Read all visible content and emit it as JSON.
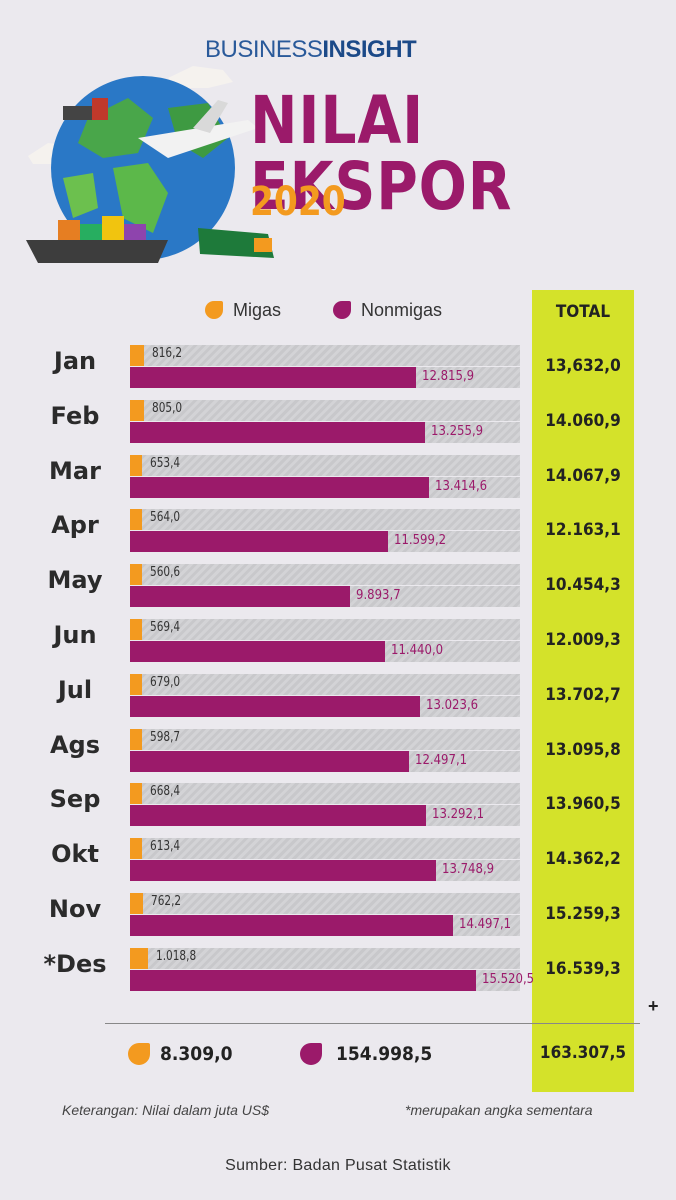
{
  "header": {
    "brand_plain": "BUSINESS",
    "brand_bold": "INSIGHT",
    "title": "NILAI EKSPOR",
    "year": "2020"
  },
  "colors": {
    "migas": "#f39a1f",
    "nonmigas": "#9b1a6a",
    "total_column": "#d4e22a",
    "background": "#ebe9ee"
  },
  "chart_data": {
    "type": "bar",
    "orientation": "horizontal",
    "categories": [
      "Jan",
      "Feb",
      "Mar",
      "Apr",
      "May",
      "Jun",
      "Jul",
      "Ags",
      "Sep",
      "Okt",
      "Nov",
      "*Des"
    ],
    "series": [
      {
        "name": "Migas",
        "values": [
          816.2,
          805.0,
          653.4,
          564.0,
          560.6,
          569.4,
          679.0,
          598.7,
          668.4,
          613.4,
          762.2,
          1018.8
        ],
        "labels": [
          "816,2",
          "805,0",
          "653,4",
          "564,0",
          "560,6",
          "569,4",
          "679,0",
          "598,7",
          "668,4",
          "613,4",
          "762,2",
          "1.018,8"
        ]
      },
      {
        "name": "Nonmigas",
        "values": [
          12815.9,
          13255.9,
          13414.6,
          11599.2,
          9893.7,
          11440.0,
          13023.6,
          12497.1,
          13292.1,
          13748.9,
          14497.1,
          15520.5
        ],
        "labels": [
          "12.815,9",
          "13.255,9",
          "13.414,6",
          "11.599,2",
          "9.893,7",
          "11.440,0",
          "13.023,6",
          "12.497,1",
          "13.292,1",
          "13.748,9",
          "14.497,1",
          "15.520,5"
        ]
      }
    ],
    "total_header": "TOTAL",
    "totals": [
      "13,632,0",
      "14.060,9",
      "14.067,9",
      "12.163,1",
      "10.454,3",
      "12.009,3",
      "13.702,7",
      "13.095,8",
      "13.960,5",
      "14.362,2",
      "15.259,3",
      "16.539,3"
    ],
    "sum_migas": "8.309,0",
    "sum_nonmigas": "154.998,5",
    "sum_total": "163.307,5",
    "plus_sign": "+",
    "xlim": [
      0,
      17500
    ]
  },
  "footer": {
    "note_left": "Keterangan: Nilai dalam juta US$",
    "note_right": "*merupakan angka sementara",
    "source": "Sumber: Badan Pusat Statistik"
  }
}
